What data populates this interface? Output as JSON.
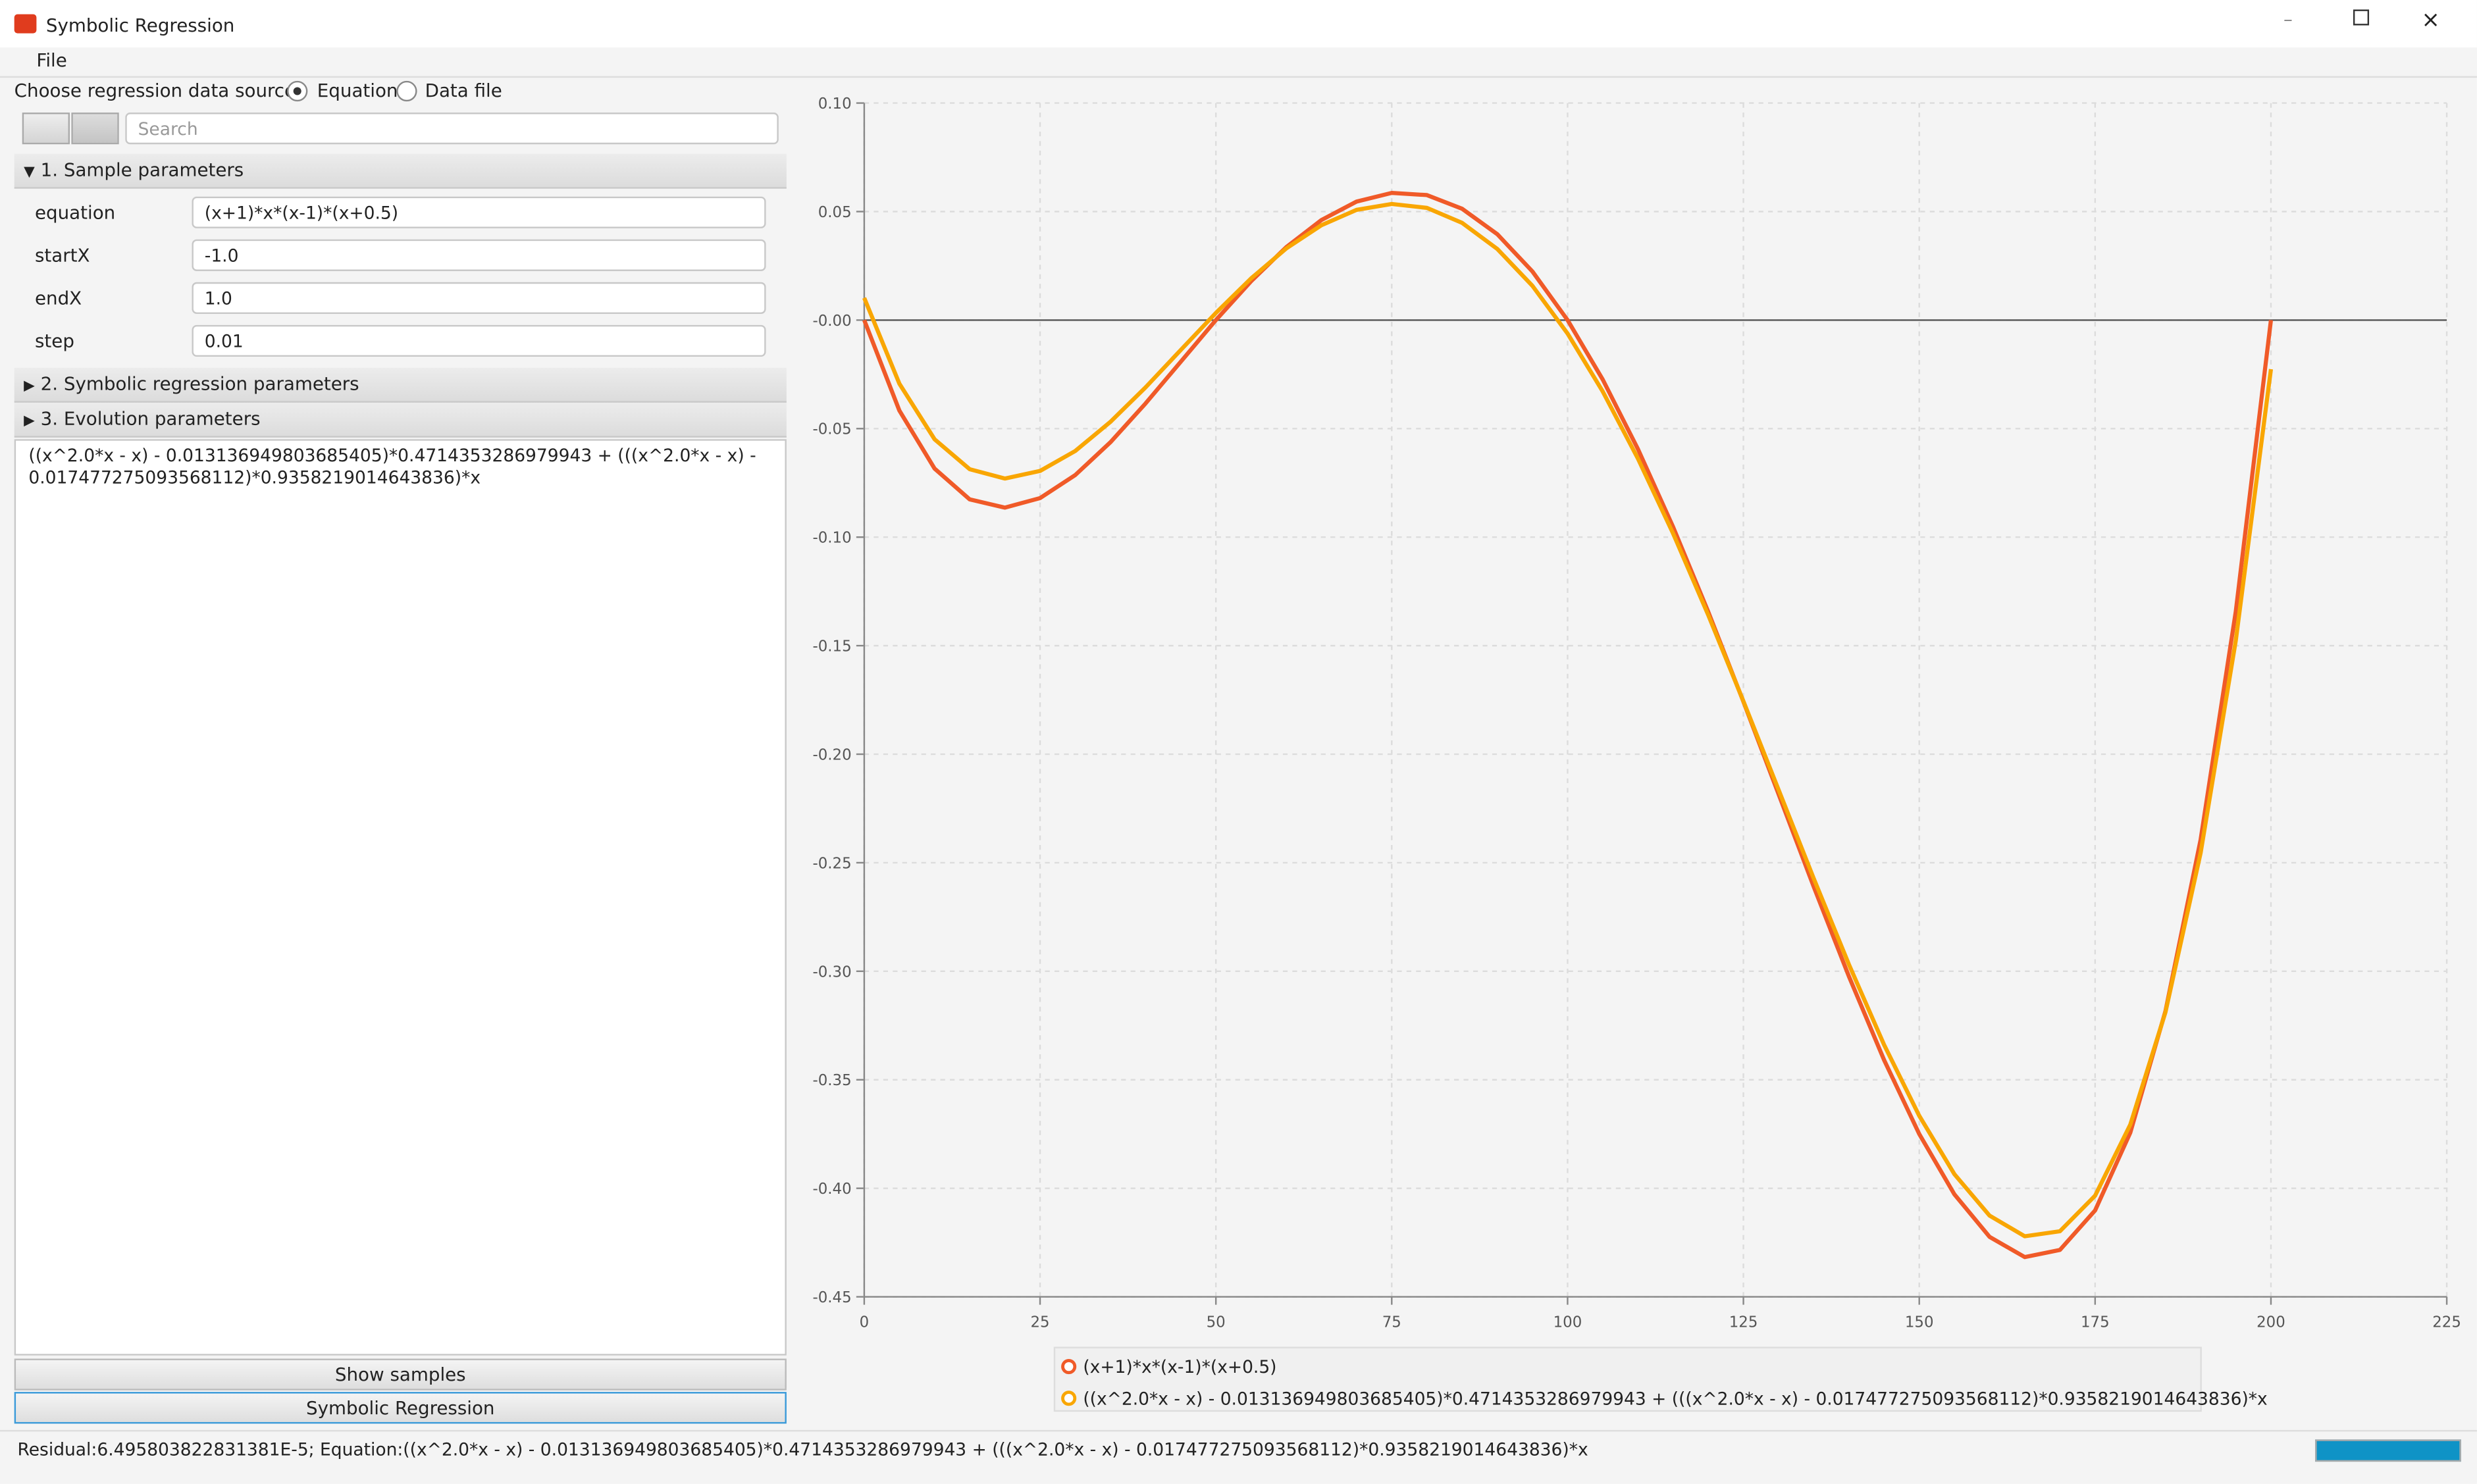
{
  "window": {
    "title": "Symbolic Regression"
  },
  "menu": [
    "File"
  ],
  "source": {
    "label": "Choose regression data source:",
    "options": [
      "Equation",
      "Data file"
    ]
  },
  "search_placeholder": "Search",
  "sections": [
    {
      "title": "1. Sample parameters",
      "fields": [
        {
          "name": "equation",
          "value": "(x+1)*x*(x-1)*(x+0.5)"
        },
        {
          "name": "startX",
          "value": "-1.0"
        },
        {
          "name": "endX",
          "value": "1.0"
        },
        {
          "name": "step",
          "value": "0.01"
        }
      ]
    },
    {
      "title": "2. Symbolic regression parameters"
    },
    {
      "title": "3. Evolution parameters"
    }
  ],
  "result_text": "((x^2.0*x - x) - 0.013136949803685405)*0.4714353286979943 + (((x^2.0*x - x) - 0.017477275093568112)*0.9358219014643836)*x",
  "buttons": [
    "Show samples",
    "Symbolic Regression"
  ],
  "status": "Residual:6.495803822831381E-5; Equation:((x^2.0*x - x) - 0.013136949803685405)*0.4714353286979943 + (((x^2.0*x - x) - 0.017477275093568112)*0.9358219014643836)*x",
  "chart_data": {
    "type": "line",
    "x": [
      0,
      5,
      10,
      15,
      20,
      25,
      30,
      35,
      40,
      45,
      50,
      55,
      60,
      65,
      70,
      75,
      80,
      85,
      90,
      95,
      100,
      105,
      110,
      115,
      120,
      125,
      130,
      135,
      140,
      145,
      150,
      155,
      160,
      165,
      170,
      175,
      180,
      185,
      190,
      195,
      200
    ],
    "series": [
      {
        "name": "(x+1)*x*(x-1)*(x+0.5)",
        "color": "#f05a28",
        "values": [
          0,
          -0.0417,
          -0.0684,
          -0.0826,
          -0.0864,
          -0.082,
          -0.0714,
          -0.0563,
          -0.0384,
          -0.0192,
          0,
          0.0179,
          0.0336,
          0.0461,
          0.0546,
          0.0586,
          0.0576,
          0.0513,
          0.0396,
          0.0224,
          0,
          -0.0274,
          -0.0594,
          -0.0953,
          -0.1344,
          -0.1758,
          -0.2184,
          -0.2611,
          -0.3024,
          -0.3409,
          -0.375,
          -0.4028,
          -0.4224,
          -0.4317,
          -0.4284,
          -0.4102,
          -0.3744,
          -0.3184,
          -0.2394,
          -0.1343,
          0
        ]
      },
      {
        "name": "((x^2.0*x - x) - 0.013136949803685405)*0.4714353286979943 + (((x^2.0*x - x) - 0.017477275093568112)*0.9358219014643836)*x",
        "color": "#f9a602",
        "values": [
          0.0102,
          -0.0293,
          -0.0549,
          -0.0687,
          -0.073,
          -0.0695,
          -0.0603,
          -0.0469,
          -0.031,
          -0.0138,
          0.0033,
          0.0192,
          0.033,
          0.0437,
          0.0508,
          0.0535,
          0.0517,
          0.0448,
          0.0328,
          0.0158,
          -0.0062,
          -0.0329,
          -0.0638,
          -0.0983,
          -0.1359,
          -0.1756,
          -0.2164,
          -0.2573,
          -0.2969,
          -0.3339,
          -0.3666,
          -0.3935,
          -0.4126,
          -0.4221,
          -0.4198,
          -0.4034,
          -0.3707,
          -0.3189,
          -0.2455,
          -0.1477,
          -0.0226
        ]
      }
    ],
    "xlim": [
      0,
      225
    ],
    "xticks": [
      0,
      25,
      50,
      75,
      100,
      125,
      150,
      175,
      200,
      225
    ],
    "ylim": [
      -0.45,
      0.1
    ],
    "yticks": [
      {
        "value": 0.1,
        "label": "0.10"
      },
      0.05,
      {
        "value": 0,
        "label": "-0.00"
      },
      -0.05,
      {
        "value": -0.1,
        "label": "-0.10"
      },
      -0.15,
      {
        "value": -0.2,
        "label": "-0.20"
      },
      -0.25,
      {
        "value": -0.3,
        "label": "-0.30"
      },
      -0.35,
      {
        "value": -0.4,
        "label": "-0.40"
      },
      -0.45
    ],
    "grid": true
  }
}
